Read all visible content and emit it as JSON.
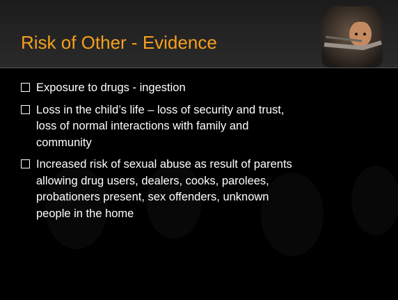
{
  "title": "Risk of Other - Evidence",
  "bullets": [
    [
      "Exposure to drugs - ingestion"
    ],
    [
      "Loss in the child’s life – loss of security and trust,",
      "loss of normal interactions with family and",
      "community"
    ],
    [
      "Increased risk of sexual abuse as result of parents",
      "allowing drug users, dealers, cooks, parolees,",
      "probationers present, sex offenders, unknown",
      "people in the home"
    ]
  ]
}
